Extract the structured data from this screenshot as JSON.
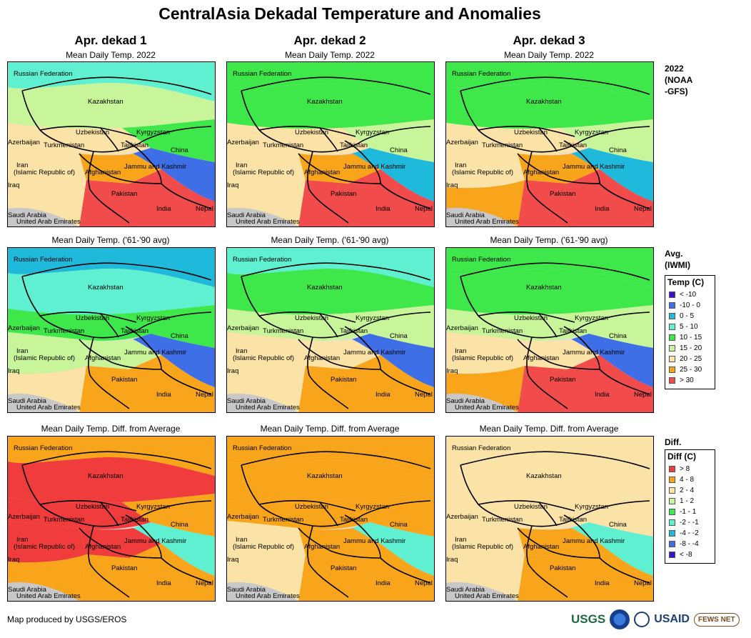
{
  "title": "CentralAsia Dekadal Temperature and Anomalies",
  "columns": [
    "Apr. dekad 1",
    "Apr. dekad 2",
    "Apr. dekad 3"
  ],
  "rows": [
    {
      "map_title": "Mean Daily Temp. 2022",
      "label_lines": [
        "2022",
        "(NOAA",
        "-GFS)"
      ],
      "kind": "cur"
    },
    {
      "map_title": "Mean Daily Temp. ('61-'90 avg)",
      "label_lines": [
        "Avg.",
        "(IWMI)"
      ],
      "kind": "avg"
    },
    {
      "map_title": "Mean Daily Temp. Diff. from Average",
      "label_lines": [
        "Diff."
      ],
      "kind": "diff"
    }
  ],
  "place_labels": [
    {
      "text": "Russian Federation"
    },
    {
      "text": "Kazakhstan"
    },
    {
      "text": "Uzbekistan"
    },
    {
      "text": "Kyrgyzstan"
    },
    {
      "text": "Azerbaijan"
    },
    {
      "text": "Turkmenistan"
    },
    {
      "text": "Tajikistan"
    },
    {
      "text": "China"
    },
    {
      "text": "Iran"
    },
    {
      "text": "(Islamic Republic of)"
    },
    {
      "text": "Afghanistan"
    },
    {
      "text": "Jammu and Kashmir"
    },
    {
      "text": "Iraq"
    },
    {
      "text": "Pakistan"
    },
    {
      "text": "Nepal"
    },
    {
      "text": "India"
    },
    {
      "text": "Saudi Arabia"
    },
    {
      "text": "United Arab Emirates"
    }
  ],
  "temp_legend": {
    "title": "Temp (C)",
    "items": [
      {
        "label": "< -10",
        "color": "#3a0fcf"
      },
      {
        "label": "-10 - 0",
        "color": "#3f6fe6"
      },
      {
        "label": "0 - 5",
        "color": "#1fb9dc"
      },
      {
        "label": "5 - 10",
        "color": "#5ff0d2"
      },
      {
        "label": "10 - 15",
        "color": "#3ee84a"
      },
      {
        "label": "15 - 20",
        "color": "#c8f59a"
      },
      {
        "label": "20 - 25",
        "color": "#fbe2a6"
      },
      {
        "label": "25 - 30",
        "color": "#f9a51c"
      },
      {
        "label": "> 30",
        "color": "#f24b4b"
      }
    ]
  },
  "diff_legend": {
    "title": "Diff (C)",
    "items": [
      {
        "label": "> 8",
        "color": "#f03c3c"
      },
      {
        "label": "4 - 8",
        "color": "#f9a51c"
      },
      {
        "label": "2 - 4",
        "color": "#fbe2a6"
      },
      {
        "label": "1 - 2",
        "color": "#c8f59a"
      },
      {
        "label": "-1 - 1",
        "color": "#3ee84a"
      },
      {
        "label": "-2 - -1",
        "color": "#5ff0d2"
      },
      {
        "label": "-4 - -2",
        "color": "#1fb9dc"
      },
      {
        "label": "-8 - -4",
        "color": "#3f6fe6"
      },
      {
        "label": "< -8",
        "color": "#3a0fcf"
      }
    ]
  },
  "credit": "Map produced by USGS/EROS",
  "logos": {
    "usgs": "USGS",
    "usaid": "USAID",
    "fews": "FEWS NET"
  }
}
